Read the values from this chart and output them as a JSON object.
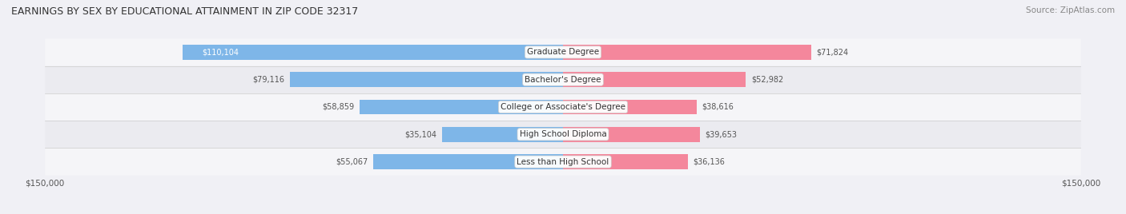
{
  "title": "EARNINGS BY SEX BY EDUCATIONAL ATTAINMENT IN ZIP CODE 32317",
  "source": "Source: ZipAtlas.com",
  "categories": [
    "Less than High School",
    "High School Diploma",
    "College or Associate's Degree",
    "Bachelor's Degree",
    "Graduate Degree"
  ],
  "male_values": [
    55067,
    35104,
    58859,
    79116,
    110104
  ],
  "female_values": [
    36136,
    39653,
    38616,
    52982,
    71824
  ],
  "male_color": "#7EB6E8",
  "female_color": "#F4879C",
  "bar_bg_color": "#E8E8EE",
  "row_bg_colors": [
    "#F5F5F8",
    "#EBEBF0"
  ],
  "max_value": 150000,
  "label_color": "#555555",
  "value_color": "#555555",
  "title_color": "#333333",
  "bar_height": 0.55,
  "figsize": [
    14.06,
    2.68
  ],
  "dpi": 100
}
